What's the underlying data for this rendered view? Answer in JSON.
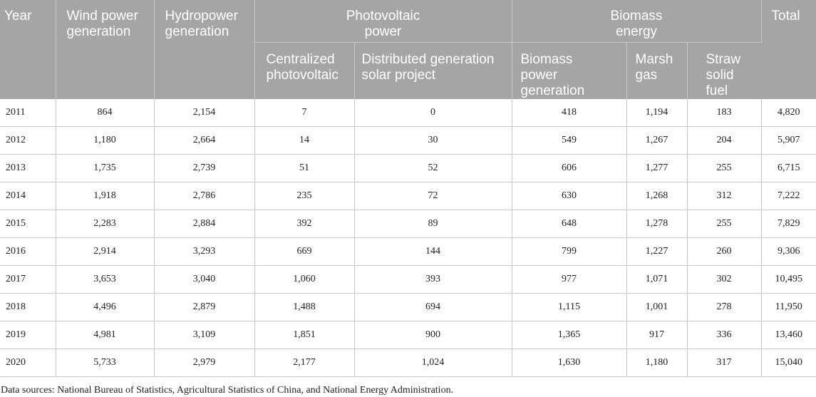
{
  "table": {
    "headers": {
      "year": "Year",
      "wind": "Wind power generation",
      "hydro": "Hydropower generation",
      "photovoltaic": "Photovoltaic power",
      "biomass": "Biomass energy",
      "total": "Total",
      "centralized_pv": "Centralized photovoltaic",
      "distributed_pv": "Distributed generation solar project",
      "biomass_power": "Biomass power generation",
      "marsh_gas": "Marsh gas",
      "straw_fuel": "Straw solid fuel"
    },
    "rows": [
      [
        "2011",
        "864",
        "2,154",
        "7",
        "0",
        "418",
        "1,194",
        "183",
        "4,820"
      ],
      [
        "2012",
        "1,180",
        "2,664",
        "14",
        "30",
        "549",
        "1,267",
        "204",
        "5,907"
      ],
      [
        "2013",
        "1,735",
        "2,739",
        "51",
        "52",
        "606",
        "1,277",
        "255",
        "6,715"
      ],
      [
        "2014",
        "1,918",
        "2,786",
        "235",
        "72",
        "630",
        "1,268",
        "312",
        "7,222"
      ],
      [
        "2015",
        "2,283",
        "2,884",
        "392",
        "89",
        "648",
        "1,278",
        "255",
        "7,829"
      ],
      [
        "2016",
        "2,914",
        "3,293",
        "669",
        "144",
        "799",
        "1,227",
        "260",
        "9,306"
      ],
      [
        "2017",
        "3,653",
        "3,040",
        "1,060",
        "393",
        "977",
        "1,071",
        "302",
        "10,495"
      ],
      [
        "2018",
        "4,496",
        "2,879",
        "1,488",
        "694",
        "1,115",
        "1,001",
        "278",
        "11,950"
      ],
      [
        "2019",
        "4,981",
        "3,109",
        "1,851",
        "900",
        "1,365",
        "917",
        "336",
        "13,460"
      ],
      [
        "2020",
        "5,733",
        "2,979",
        "2,177",
        "1,024",
        "1,630",
        "1,180",
        "317",
        "15,040"
      ]
    ]
  },
  "footnote": "Data sources: National Bureau of Statistics, Agricultural Statistics of China, and National Energy Administration."
}
